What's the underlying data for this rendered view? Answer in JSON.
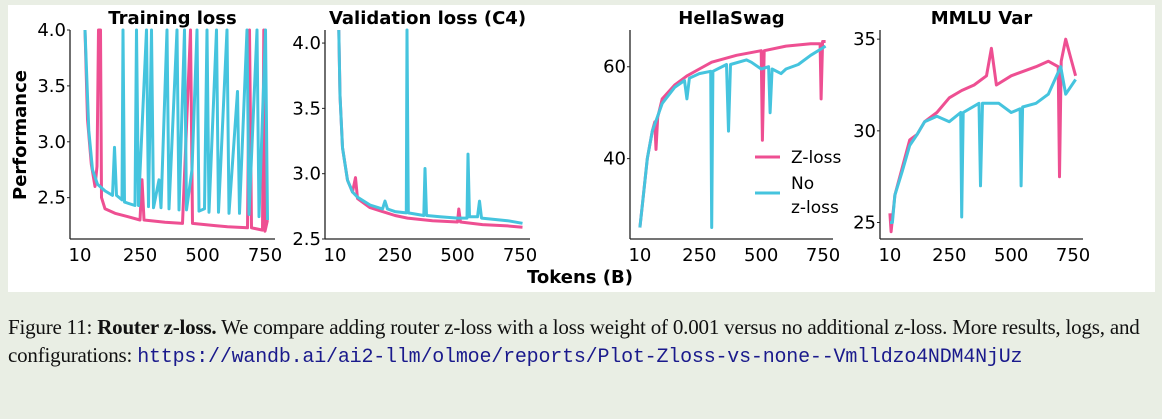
{
  "colors": {
    "z_loss": "#ee4f92",
    "no_z_loss": "#45c4de",
    "background": "#e9eee4"
  },
  "chart_data": [
    {
      "type": "line",
      "title": "Training loss",
      "xlim": [
        -30,
        790
      ],
      "ylim": [
        2.13,
        4.0
      ],
      "xticks": [
        10,
        250,
        500,
        750
      ],
      "xtick_labels": [
        "10",
        "250",
        "500",
        "750"
      ],
      "yticks": [
        2.5,
        3.0,
        3.5,
        4.0
      ],
      "ytick_labels": [
        "2.5",
        "3.0",
        "3.5",
        "4.0"
      ],
      "series": [
        {
          "name": "Z-loss",
          "color": "#ee4f92",
          "points": [
            [
              30,
              4.0
            ],
            [
              40,
              3.2
            ],
            [
              55,
              2.8
            ],
            [
              70,
              2.6
            ],
            [
              78,
              2.78
            ],
            [
              84,
              4.0
            ],
            [
              92,
              4.0
            ],
            [
              96,
              2.5
            ],
            [
              110,
              2.4
            ],
            [
              150,
              2.36
            ],
            [
              200,
              2.33
            ],
            [
              250,
              2.3
            ],
            [
              258,
              2.66
            ],
            [
              266,
              2.3
            ],
            [
              350,
              2.28
            ],
            [
              420,
              2.27
            ],
            [
              452,
              4.0
            ],
            [
              460,
              2.27
            ],
            [
              550,
              2.25
            ],
            [
              600,
              2.24
            ],
            [
              680,
              2.23
            ],
            [
              688,
              4.0
            ],
            [
              696,
              2.23
            ],
            [
              740,
              2.21
            ],
            [
              745,
              4.0
            ],
            [
              750,
              2.2
            ],
            [
              760,
              2.3
            ]
          ]
        },
        {
          "name": "No z-loss",
          "color": "#45c4de",
          "points": [
            [
              30,
              4.0
            ],
            [
              45,
              3.1
            ],
            [
              60,
              2.75
            ],
            [
              80,
              2.62
            ],
            [
              110,
              2.56
            ],
            [
              140,
              2.52
            ],
            [
              148,
              2.95
            ],
            [
              156,
              2.52
            ],
            [
              178,
              2.48
            ],
            [
              182,
              4.0
            ],
            [
              188,
              2.46
            ],
            [
              230,
              2.43
            ],
            [
              236,
              4.0
            ],
            [
              244,
              2.43
            ],
            [
              276,
              4.0
            ],
            [
              284,
              2.42
            ],
            [
              296,
              4.0
            ],
            [
              304,
              2.41
            ],
            [
              326,
              2.66
            ],
            [
              334,
              2.41
            ],
            [
              358,
              4.0
            ],
            [
              366,
              2.4
            ],
            [
              398,
              4.0
            ],
            [
              406,
              2.39
            ],
            [
              428,
              4.0
            ],
            [
              436,
              2.39
            ],
            [
              458,
              2.75
            ],
            [
              478,
              4.0
            ],
            [
              486,
              2.38
            ],
            [
              508,
              2.4
            ],
            [
              518,
              4.0
            ],
            [
              526,
              2.37
            ],
            [
              556,
              4.0
            ],
            [
              564,
              2.37
            ],
            [
              598,
              4.0
            ],
            [
              606,
              2.36
            ],
            [
              640,
              3.45
            ],
            [
              648,
              2.36
            ],
            [
              678,
              4.0
            ],
            [
              686,
              2.35
            ],
            [
              718,
              4.0
            ],
            [
              726,
              2.33
            ],
            [
              752,
              4.0
            ],
            [
              760,
              2.3
            ]
          ]
        }
      ]
    },
    {
      "type": "line",
      "title": "Validation loss (C4)",
      "xlim": [
        -30,
        790
      ],
      "ylim": [
        2.5,
        4.1
      ],
      "xticks": [
        10,
        250,
        500,
        750
      ],
      "xtick_labels": [
        "10",
        "250",
        "500",
        "750"
      ],
      "yticks": [
        2.5,
        3.0,
        3.5,
        4.0
      ],
      "ytick_labels": [
        "2.5",
        "3.0",
        "3.5",
        "4.0"
      ],
      "series": [
        {
          "name": "Z-loss",
          "color": "#ee4f92",
          "points": [
            [
              25,
              4.1
            ],
            [
              30,
              3.6
            ],
            [
              40,
              3.2
            ],
            [
              60,
              2.95
            ],
            [
              80,
              2.86
            ],
            [
              92,
              2.97
            ],
            [
              100,
              2.81
            ],
            [
              150,
              2.74
            ],
            [
              200,
              2.71
            ],
            [
              250,
              2.68
            ],
            [
              300,
              2.66
            ],
            [
              400,
              2.64
            ],
            [
              500,
              2.63
            ],
            [
              505,
              2.73
            ],
            [
              512,
              2.63
            ],
            [
              600,
              2.61
            ],
            [
              700,
              2.6
            ],
            [
              760,
              2.59
            ]
          ]
        },
        {
          "name": "No z-loss",
          "color": "#45c4de",
          "points": [
            [
              25,
              4.1
            ],
            [
              30,
              3.6
            ],
            [
              40,
              3.2
            ],
            [
              60,
              2.95
            ],
            [
              80,
              2.86
            ],
            [
              100,
              2.82
            ],
            [
              150,
              2.76
            ],
            [
              200,
              2.73
            ],
            [
              210,
              2.79
            ],
            [
              220,
              2.73
            ],
            [
              250,
              2.71
            ],
            [
              295,
              2.7
            ],
            [
              298,
              4.1
            ],
            [
              303,
              2.7
            ],
            [
              365,
              2.68
            ],
            [
              370,
              3.04
            ],
            [
              376,
              2.68
            ],
            [
              430,
              2.67
            ],
            [
              500,
              2.66
            ],
            [
              538,
              2.66
            ],
            [
              542,
              3.15
            ],
            [
              548,
              2.67
            ],
            [
              580,
              2.67
            ],
            [
              588,
              2.79
            ],
            [
              596,
              2.66
            ],
            [
              700,
              2.64
            ],
            [
              760,
              2.62
            ]
          ]
        }
      ]
    },
    {
      "type": "line",
      "title": "HellaSwag",
      "xlim": [
        -30,
        790
      ],
      "ylim": [
        22.5,
        68
      ],
      "xticks": [
        10,
        250,
        500,
        750
      ],
      "xtick_labels": [
        "10",
        "250",
        "500",
        "750"
      ],
      "yticks": [
        40,
        60
      ],
      "ytick_labels": [
        "40",
        "60"
      ],
      "legend": {
        "placement": "lower-right",
        "entries": [
          "Z-loss",
          "No\nz-loss"
        ]
      },
      "series": [
        {
          "name": "Z-loss",
          "color": "#ee4f92",
          "points": [
            [
              10,
              25
            ],
            [
              20,
              30
            ],
            [
              40,
              40
            ],
            [
              60,
              46
            ],
            [
              70,
              48
            ],
            [
              75,
              42
            ],
            [
              82,
              49
            ],
            [
              100,
              53
            ],
            [
              150,
              56
            ],
            [
              200,
              58
            ],
            [
              250,
              59.5
            ],
            [
              300,
              61
            ],
            [
              400,
              62.5
            ],
            [
              500,
              63.5
            ],
            [
              505,
              44
            ],
            [
              512,
              63.5
            ],
            [
              600,
              64.5
            ],
            [
              700,
              65
            ],
            [
              738,
              65
            ],
            [
              742,
              53
            ],
            [
              748,
              65.5
            ],
            [
              760,
              65.5
            ]
          ]
        },
        {
          "name": "No z-loss",
          "color": "#45c4de",
          "points": [
            [
              10,
              25
            ],
            [
              20,
              30
            ],
            [
              40,
              40
            ],
            [
              60,
              46
            ],
            [
              100,
              52
            ],
            [
              150,
              55.5
            ],
            [
              190,
              57
            ],
            [
              200,
              53
            ],
            [
              210,
              57.5
            ],
            [
              250,
              58.5
            ],
            [
              296,
              59
            ],
            [
              300,
              25
            ],
            [
              305,
              59
            ],
            [
              360,
              60.5
            ],
            [
              368,
              46
            ],
            [
              376,
              60.5
            ],
            [
              440,
              61.5
            ],
            [
              460,
              61
            ],
            [
              500,
              59.5
            ],
            [
              530,
              60
            ],
            [
              536,
              50
            ],
            [
              544,
              59.5
            ],
            [
              580,
              58.5
            ],
            [
              600,
              59.5
            ],
            [
              650,
              60.5
            ],
            [
              700,
              62.5
            ],
            [
              760,
              64.5
            ]
          ]
        }
      ]
    },
    {
      "type": "line",
      "title": "MMLU Var",
      "xlim": [
        -30,
        790
      ],
      "ylim": [
        24.1,
        35.5
      ],
      "xticks": [
        10,
        250,
        500,
        750
      ],
      "xtick_labels": [
        "10",
        "250",
        "500",
        "750"
      ],
      "yticks": [
        25,
        30,
        35
      ],
      "ytick_labels": [
        "25",
        "30",
        "35"
      ],
      "series": [
        {
          "name": "Z-loss",
          "color": "#ee4f92",
          "points": [
            [
              10,
              25.5
            ],
            [
              15,
              24.5
            ],
            [
              30,
              26.5
            ],
            [
              60,
              28
            ],
            [
              90,
              29.5
            ],
            [
              120,
              29.8
            ],
            [
              150,
              30.5
            ],
            [
              200,
              31
            ],
            [
              250,
              31.8
            ],
            [
              300,
              32.2
            ],
            [
              350,
              32.5
            ],
            [
              400,
              33
            ],
            [
              420,
              34.5
            ],
            [
              440,
              32.5
            ],
            [
              500,
              33
            ],
            [
              560,
              33.3
            ],
            [
              600,
              33.5
            ],
            [
              650,
              33.8
            ],
            [
              690,
              33.5
            ],
            [
              695,
              27.5
            ],
            [
              702,
              33.8
            ],
            [
              720,
              35
            ],
            [
              740,
              34
            ],
            [
              760,
              33
            ]
          ]
        },
        {
          "name": "No z-loss",
          "color": "#45c4de",
          "points": [
            [
              10,
              25
            ],
            [
              20,
              25
            ],
            [
              30,
              26.5
            ],
            [
              60,
              27.8
            ],
            [
              90,
              29.2
            ],
            [
              120,
              29.8
            ],
            [
              150,
              30.5
            ],
            [
              200,
              30.8
            ],
            [
              250,
              30.5
            ],
            [
              296,
              31
            ],
            [
              300,
              25.3
            ],
            [
              306,
              31
            ],
            [
              370,
              31.5
            ],
            [
              376,
              27
            ],
            [
              384,
              31.5
            ],
            [
              450,
              31.5
            ],
            [
              500,
              31
            ],
            [
              536,
              31.2
            ],
            [
              540,
              27
            ],
            [
              546,
              31.3
            ],
            [
              600,
              31.5
            ],
            [
              650,
              32
            ],
            [
              700,
              33.5
            ],
            [
              720,
              32
            ],
            [
              760,
              32.8
            ]
          ]
        }
      ]
    }
  ],
  "axes": {
    "ylabel": "Performance",
    "xlabel": "Tokens (B)"
  },
  "caption": {
    "label": "Figure 11: ",
    "bold": "Router z-loss.",
    "text": " We compare adding router z-loss with a loss weight of 0.001 versus no additional z-loss. More results, logs, and configurations: ",
    "url": "https://wandb.ai/ai2-llm/olmoe/reports/Plot-Zloss-vs-none--Vmlldzo4NDM4NjUz"
  }
}
